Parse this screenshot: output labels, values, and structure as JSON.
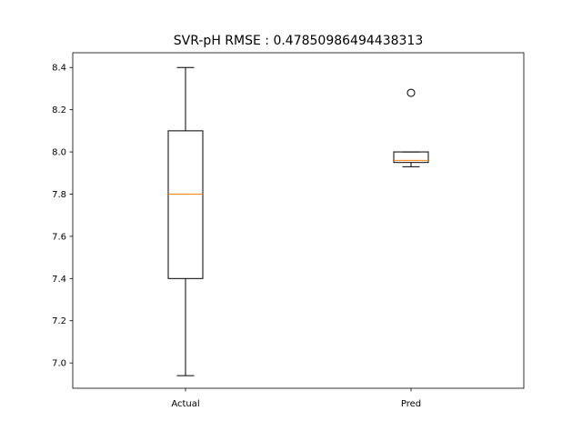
{
  "chart_data": {
    "type": "boxplot",
    "title": "SVR-pH RMSE : 0.47850986494438313",
    "xlabel": "",
    "ylabel": "",
    "categories": [
      "Actual",
      "Pred"
    ],
    "ylim": [
      6.88,
      8.47
    ],
    "yticks": [
      7.0,
      7.2,
      7.4,
      7.6,
      7.8,
      8.0,
      8.2,
      8.4
    ],
    "ytick_labels": [
      "7.0",
      "7.2",
      "7.4",
      "7.6",
      "7.8",
      "8.0",
      "8.2",
      "8.4"
    ],
    "grid": false,
    "boxes": [
      {
        "label": "Actual",
        "whisker_low": 6.94,
        "q1": 7.4,
        "median": 7.8,
        "q3": 8.1,
        "whisker_high": 8.4,
        "outliers": []
      },
      {
        "label": "Pred",
        "whisker_low": 7.93,
        "q1": 7.95,
        "median": 7.96,
        "q3": 8.0,
        "whisker_high": 8.0,
        "outliers": [
          8.28
        ]
      }
    ],
    "colors": {
      "box": "#000000",
      "median": "#ff7f0e",
      "outlier": "#000000"
    }
  }
}
